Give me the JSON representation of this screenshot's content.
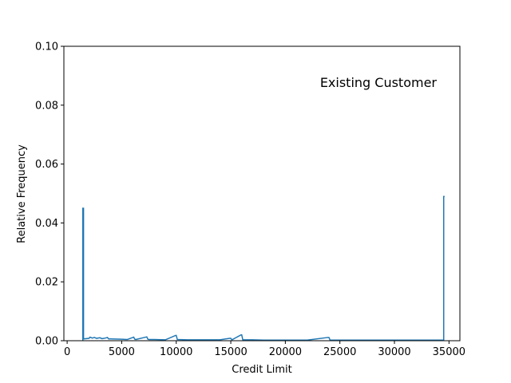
{
  "chart_data": {
    "type": "line",
    "title": "",
    "annotation": "Existing Customer",
    "xlabel": "Credit Limit",
    "ylabel": "Relative Frequency",
    "xlim": [
      -300,
      36000
    ],
    "ylim": [
      0,
      0.1
    ],
    "xticks": [
      0,
      5000,
      10000,
      15000,
      20000,
      25000,
      30000,
      35000
    ],
    "yticks": [
      0.0,
      0.02,
      0.04,
      0.06,
      0.08,
      0.1
    ],
    "ytick_labels": [
      "0.00",
      "0.02",
      "0.04",
      "0.06",
      "0.08",
      "0.10"
    ],
    "grid": false,
    "line_color": "#1f77b4",
    "series": [
      {
        "x": [
          1438,
          1438,
          1500,
          1500,
          2000,
          2100,
          2300,
          2500,
          2700,
          3000,
          3200,
          3500,
          3700,
          3800,
          4000,
          5000,
          5500,
          6100,
          6200,
          6300,
          7300,
          7400,
          7500,
          8000,
          9000,
          9950,
          10000,
          10100,
          11000,
          12000,
          13000,
          14000,
          14900,
          15000,
          15100,
          15950,
          16000,
          16100,
          17000,
          18000,
          20000,
          22000,
          23900,
          24000,
          24100,
          25000,
          28000,
          30000,
          33000,
          34400,
          34516,
          34516,
          34600
        ],
        "y": [
          0.0,
          0.045,
          0.045,
          0.0006,
          0.0008,
          0.0012,
          0.0009,
          0.0011,
          0.0008,
          0.001,
          0.0007,
          0.0009,
          0.0011,
          0.0006,
          0.0006,
          0.0005,
          0.0004,
          0.0012,
          0.0005,
          0.0004,
          0.0013,
          0.0005,
          0.0004,
          0.0004,
          0.0003,
          0.0018,
          0.0018,
          0.0004,
          0.0003,
          0.0003,
          0.0003,
          0.0003,
          0.0008,
          0.0008,
          0.0003,
          0.002,
          0.002,
          0.0003,
          0.0003,
          0.0002,
          0.0002,
          0.0002,
          0.0011,
          0.0011,
          0.0002,
          0.0002,
          0.0002,
          0.0002,
          0.0002,
          0.0002,
          0.0002,
          0.049,
          0.049
        ]
      }
    ]
  }
}
